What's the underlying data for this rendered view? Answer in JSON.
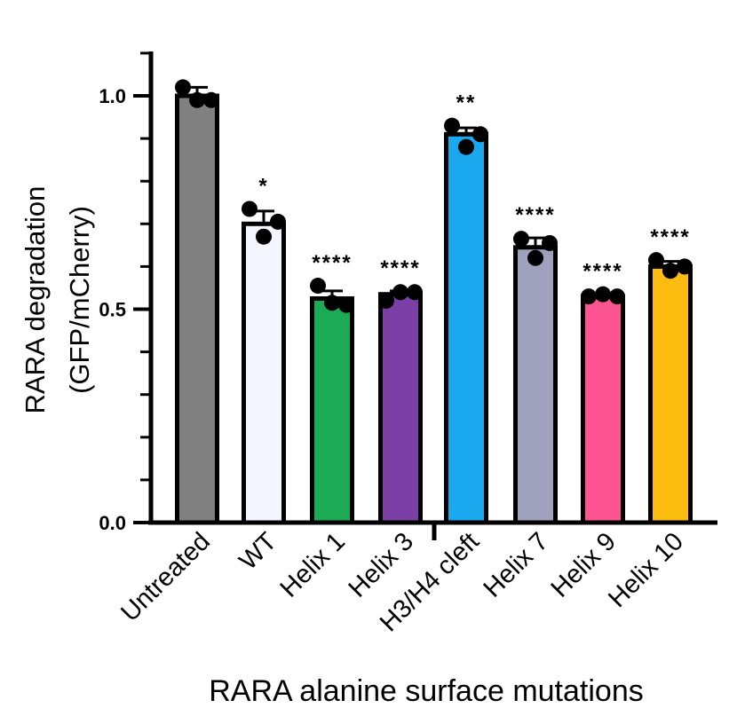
{
  "chart_data": {
    "type": "bar",
    "xlabel": "RARA alanine surface mutations",
    "ylabel_line1": "RARA degradation",
    "ylabel_line2": "(GFP/mCherry)",
    "ylim": [
      0,
      1.1
    ],
    "yticks": [
      0.0,
      0.5,
      1.0
    ],
    "ytick_labels": [
      "0.0",
      "0.5",
      "1.0"
    ],
    "grid": false,
    "categories": [
      "Untreated",
      "WT",
      "Helix 1",
      "Helix 3",
      "H3/H4 cleft",
      "Helix 7",
      "Helix 9",
      "Helix 10"
    ],
    "values": [
      1.0,
      0.7,
      0.525,
      0.535,
      0.91,
      0.645,
      0.53,
      0.6
    ],
    "errors": [
      0.02,
      0.03,
      0.018,
      0.008,
      0.015,
      0.022,
      0.005,
      0.012
    ],
    "points": [
      [
        1.02,
        0.99,
        0.99
      ],
      [
        0.735,
        0.67,
        0.705
      ],
      [
        0.555,
        0.515,
        0.51
      ],
      [
        0.52,
        0.54,
        0.54
      ],
      [
        0.93,
        0.88,
        0.91
      ],
      [
        0.665,
        0.62,
        0.655
      ],
      [
        0.53,
        0.535,
        0.53
      ],
      [
        0.615,
        0.59,
        0.6
      ]
    ],
    "significance": [
      "",
      "*",
      "****",
      "****",
      "**",
      "****",
      "****",
      "****"
    ],
    "colors": [
      "#808080",
      "#f4f6ff",
      "#1daa55",
      "#7b3fa6",
      "#1aa9ee",
      "#9fa1bd",
      "#fc5591",
      "#fdbd10"
    ]
  }
}
